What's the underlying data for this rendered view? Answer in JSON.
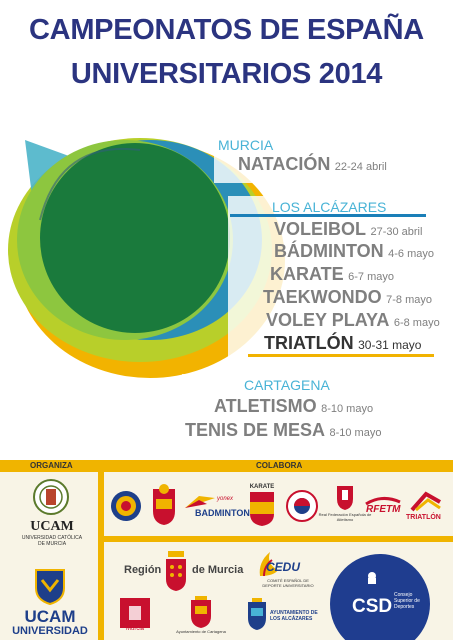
{
  "header": {
    "line1": "CAMPEONATOS DE ESPAÑA",
    "line2": "UNIVERSITARIOS 2014"
  },
  "venues": [
    {
      "city": "MURCIA",
      "events": [
        {
          "name": "NATACIÓN",
          "dates": "22-24 abril"
        }
      ]
    },
    {
      "city": "LOS ALCÁZARES",
      "events": [
        {
          "name": "VOLEIBOL",
          "dates": "27-30 abril"
        },
        {
          "name": "BÁDMINTON",
          "dates": "4-6 mayo"
        },
        {
          "name": "KARATE",
          "dates": "6-7 mayo"
        },
        {
          "name": "TAEKWONDO",
          "dates": "7-8 mayo"
        },
        {
          "name": "VOLEY PLAYA",
          "dates": "6-8 mayo"
        },
        {
          "name": "TRIATLÓN",
          "dates": "30-31 mayo"
        }
      ]
    },
    {
      "city": "CARTAGENA",
      "events": [
        {
          "name": "ATLETISMO",
          "dates": "8-10 mayo"
        },
        {
          "name": "TENIS DE MESA",
          "dates": "8-10 mayo"
        }
      ]
    }
  ],
  "footer": {
    "organiza": "ORGANIZA",
    "colabora": "COLABORA",
    "ucam_name": "UCAM",
    "ucam_sub1": "UNIVERSIDAD CATÓLICA",
    "ucam_sub2": "DE MURCIA",
    "ucam_uni": "UNIVERSIDAD",
    "sponsor_badminton": "BADMINTON",
    "sponsor_badminton_top": "yonex",
    "sponsor_karate": "KARATE",
    "sponsor_rfea": "Real Federación Española de Atletismo",
    "sponsor_rfetm": "RFETM",
    "sponsor_triatlon": "TRIATLÓN",
    "region_label_1": "Región",
    "region_label_2": "de Murcia",
    "cedu_label": "CEDU",
    "cedu_sub": "COMITÉ ESPAÑOL DE DEPORTE UNIVERSITARIO",
    "murcia_label": "Murcia",
    "cartagena_label": "Ayuntamiento de Cartagena",
    "alcazares_label": "AYUNTAMIENTO DE LOS ALCÁZARES",
    "csd_label": "CSD",
    "csd_sub": "Consejo Superior de Deportes"
  },
  "colors": {
    "title": "#2b3480",
    "city": "#48b3d6",
    "event": "#7f7f7f",
    "accent_gold": "#f0b400",
    "accent_blue": "#1a7fb8",
    "green_dark": "#1a7a3c",
    "green_light": "#8dc63f",
    "teal": "#3a8fa3"
  }
}
